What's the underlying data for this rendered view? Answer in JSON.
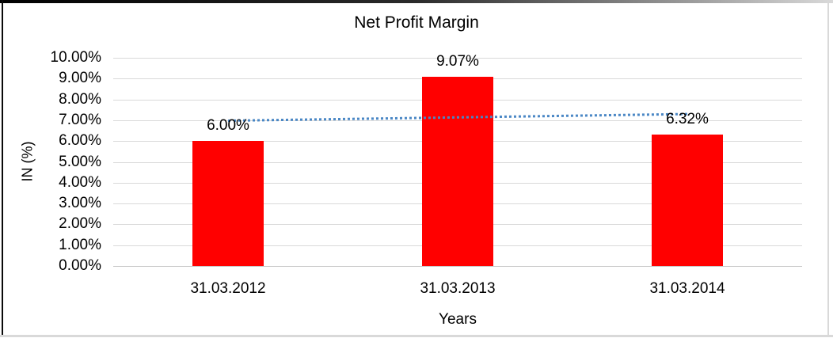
{
  "chart_data": {
    "type": "bar",
    "title": "Net Profit Margin",
    "xlabel": "Years",
    "ylabel": "IN (%)",
    "categories": [
      "31.03.2012",
      "31.03.2013",
      "31.03.2014"
    ],
    "values": [
      6.0,
      9.07,
      6.32
    ],
    "data_labels": [
      "6.00%",
      "9.07%",
      "6.32%"
    ],
    "ylim": [
      0,
      10
    ],
    "y_tick_values": [
      0,
      1,
      2,
      3,
      4,
      5,
      6,
      7,
      8,
      9,
      10
    ],
    "y_tick_labels": [
      "0.00%",
      "1.00%",
      "2.00%",
      "3.00%",
      "4.00%",
      "5.00%",
      "6.00%",
      "7.00%",
      "8.00%",
      "9.00%",
      "10.00%"
    ],
    "grid": true,
    "legend": false,
    "bar_color": "#ff0000",
    "label_color": "#000000",
    "gridline_color": "#d9d9d9",
    "trendline": {
      "type": "linear",
      "style": "dotted",
      "color": "#4a87c5",
      "start_value": 6.97,
      "end_value": 7.29
    }
  }
}
